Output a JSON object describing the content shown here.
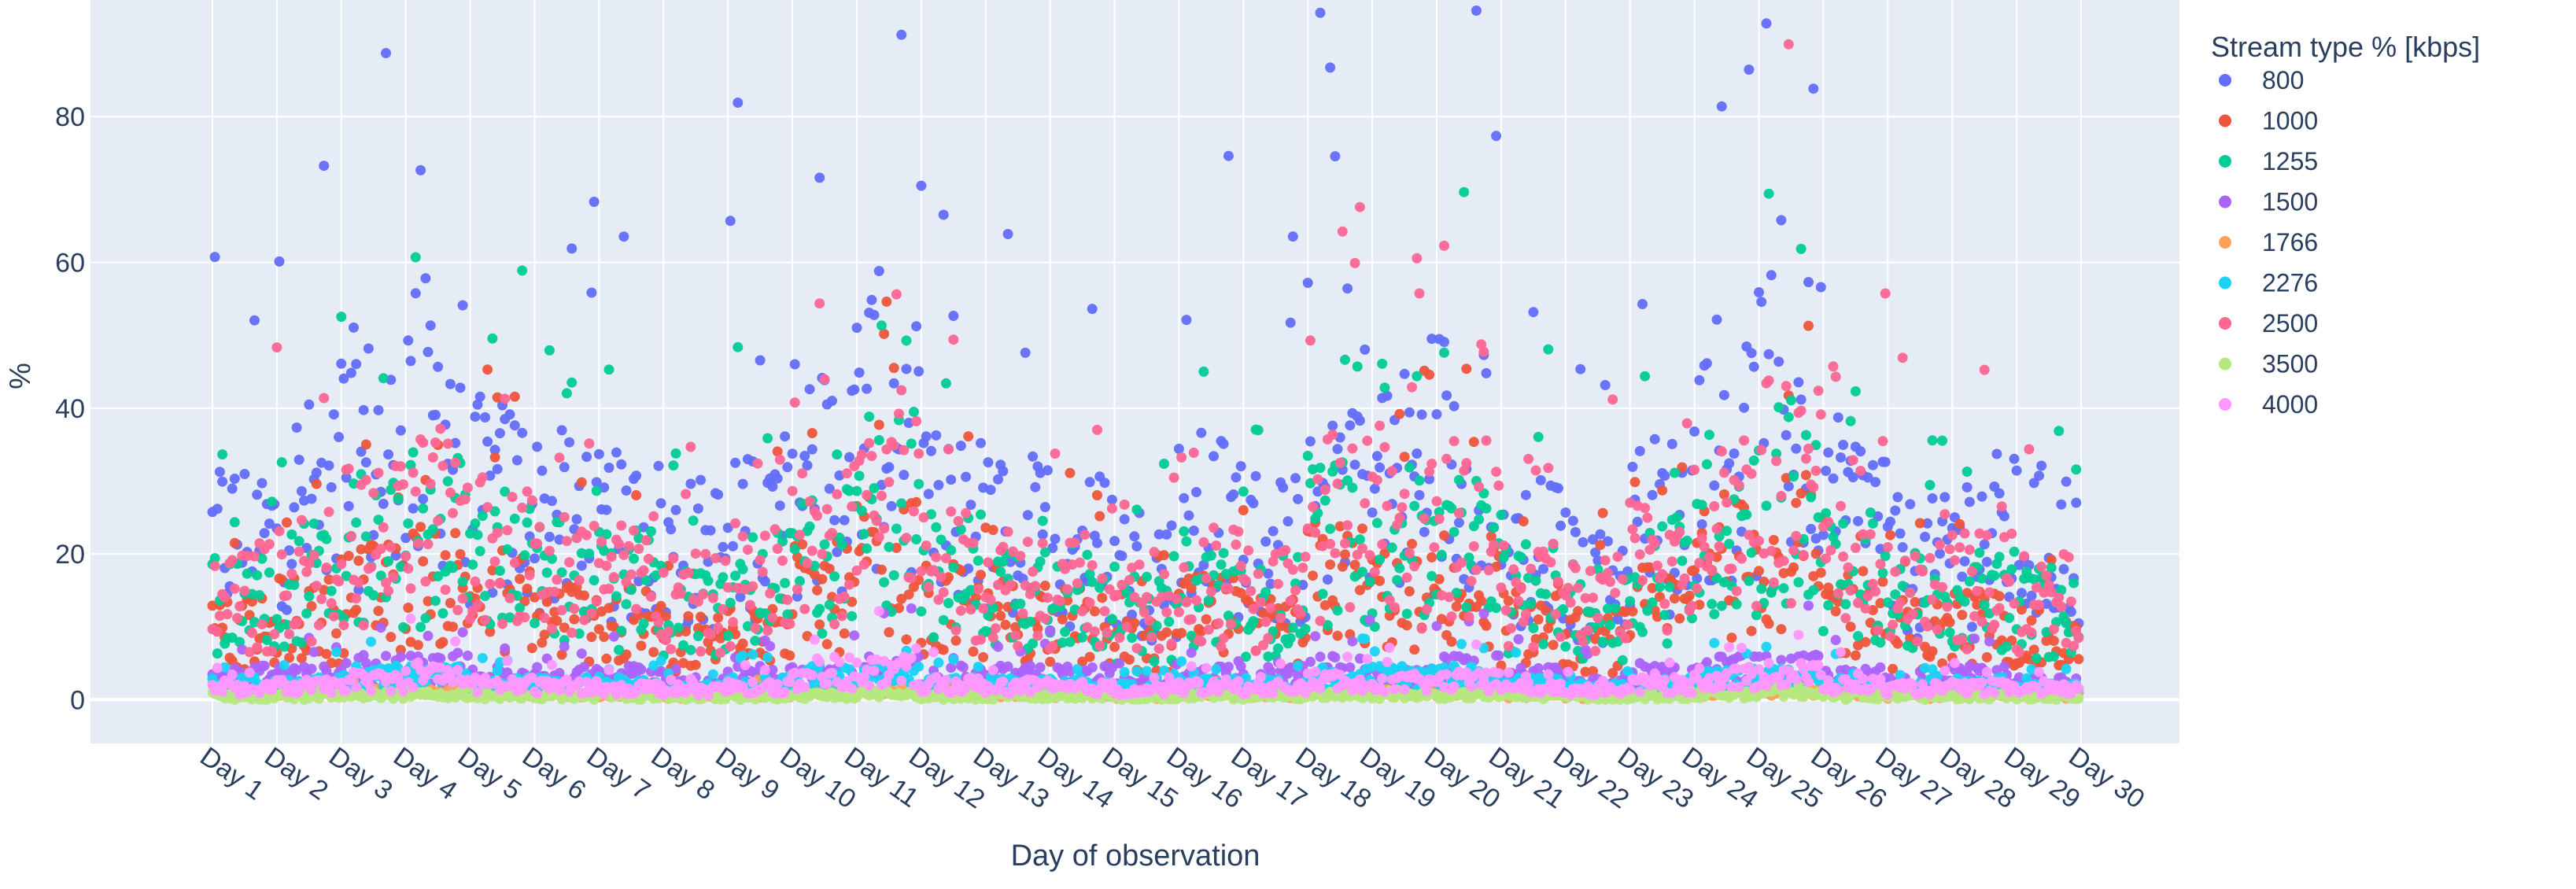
{
  "chart_data": {
    "type": "scatter",
    "title": "",
    "xlabel": "Day of observation",
    "ylabel": "%",
    "categories": [
      "Day 1",
      "Day 2",
      "Day 3",
      "Day 4",
      "Day 5",
      "Day 6",
      "Day 7",
      "Day 8",
      "Day 9",
      "Day 10",
      "Day 11",
      "Day 12",
      "Day 13",
      "Day 14",
      "Day 15",
      "Day 16",
      "Day 17",
      "Day 18",
      "Day 19",
      "Day 20",
      "Day 21",
      "Day 22",
      "Day 23",
      "Day 24",
      "Day 25",
      "Day 26",
      "Day 27",
      "Day 28",
      "Day 29",
      "Day 30"
    ],
    "yticks": [
      0,
      20,
      40,
      60,
      80
    ],
    "ylim": [
      -6,
      96
    ],
    "grid": true,
    "legend": {
      "title": "Stream type % [kbps]",
      "position": "top-right"
    },
    "series": [
      {
        "name": "800",
        "color": "#636efa",
        "values": [
          22,
          27,
          33,
          38,
          27,
          24,
          22,
          20,
          24,
          31,
          38,
          24,
          22,
          21,
          18,
          24,
          21,
          33,
          30,
          34,
          20,
          17,
          24,
          35,
          38,
          25,
          18,
          22,
          21,
          0
        ]
      },
      {
        "name": "1000",
        "color": "#ef553b",
        "values": [
          9,
          11,
          14,
          16,
          14,
          11,
          10,
          8,
          11,
          14,
          18,
          12,
          11,
          10,
          7,
          11,
          9,
          16,
          14,
          15,
          10,
          8,
          12,
          18,
          20,
          12,
          9,
          10,
          8,
          0
        ]
      },
      {
        "name": "1255",
        "color": "#00cc96",
        "values": [
          13,
          16,
          20,
          22,
          19,
          16,
          15,
          12,
          15,
          19,
          26,
          17,
          15,
          14,
          11,
          15,
          13,
          22,
          20,
          21,
          14,
          12,
          17,
          24,
          27,
          17,
          13,
          14,
          12,
          0
        ]
      },
      {
        "name": "1500",
        "color": "#ab63fa",
        "values": [
          3,
          3,
          4,
          4,
          3,
          3,
          3,
          2,
          3,
          3,
          4,
          3,
          3,
          3,
          2,
          3,
          3,
          4,
          3,
          4,
          3,
          2,
          3,
          4,
          4,
          3,
          2,
          3,
          2,
          0
        ]
      },
      {
        "name": "1766",
        "color": "#ffa15a",
        "values": [
          0.8,
          0.8,
          1,
          1.2,
          0.9,
          0.8,
          0.8,
          0.6,
          0.8,
          1,
          1.2,
          0.8,
          0.8,
          0.7,
          0.6,
          0.8,
          0.7,
          1.1,
          1,
          1,
          0.7,
          0.6,
          0.8,
          1.1,
          1.2,
          0.8,
          0.6,
          0.7,
          0.6,
          0
        ]
      },
      {
        "name": "2276",
        "color": "#19d3f3",
        "values": [
          2,
          2,
          3,
          3,
          2,
          2,
          2,
          1.5,
          2,
          3,
          3,
          2,
          2,
          2,
          1.5,
          2,
          2,
          3,
          3,
          3,
          2,
          1.5,
          2,
          3,
          3,
          2,
          1.5,
          2,
          1.5,
          0
        ]
      },
      {
        "name": "2500",
        "color": "#ff6692",
        "values": [
          14,
          17,
          21,
          24,
          20,
          17,
          16,
          13,
          16,
          21,
          28,
          18,
          16,
          15,
          12,
          16,
          14,
          24,
          21,
          23,
          15,
          13,
          18,
          26,
          29,
          18,
          14,
          15,
          13,
          0
        ]
      },
      {
        "name": "3500",
        "color": "#b6e880",
        "values": [
          0.5,
          0.5,
          0.6,
          0.7,
          0.5,
          0.5,
          0.5,
          0.4,
          0.5,
          0.6,
          0.8,
          0.5,
          0.5,
          0.5,
          0.4,
          0.5,
          0.5,
          0.7,
          0.6,
          0.6,
          0.5,
          0.4,
          0.5,
          0.7,
          0.8,
          0.5,
          0.4,
          0.5,
          0.4,
          0
        ]
      },
      {
        "name": "4000",
        "color": "#ff97ff",
        "values": [
          1.5,
          1.8,
          2.5,
          3.5,
          2,
          1.8,
          1.6,
          1.3,
          1.8,
          2.5,
          3.8,
          2,
          1.8,
          1.6,
          1.3,
          1.8,
          1.6,
          2.6,
          2.3,
          2.5,
          1.6,
          1.4,
          2,
          3,
          3.5,
          2,
          1.5,
          1.6,
          1.4,
          0
        ]
      }
    ]
  }
}
